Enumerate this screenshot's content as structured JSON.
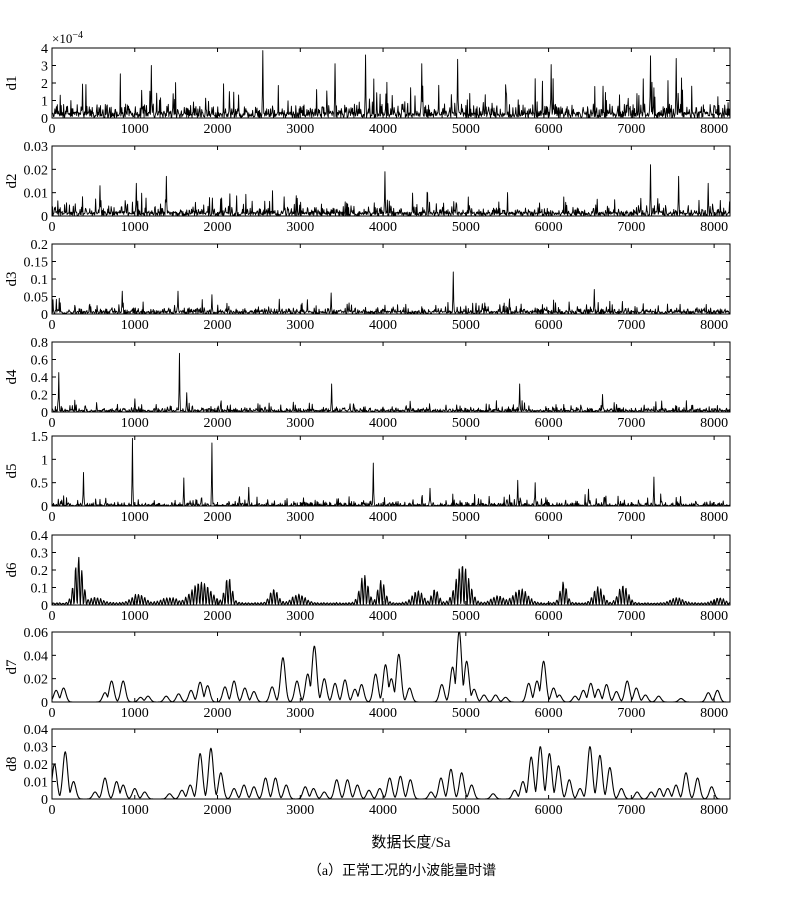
{
  "chart_data": {
    "type": "line",
    "xlabel": "数据长度/Sa",
    "caption": "（a）正常工况的小波能量时谱",
    "xlim": [
      0,
      8192
    ],
    "x_ticks": [
      0,
      1000,
      2000,
      3000,
      4000,
      5000,
      6000,
      7000,
      8000
    ],
    "x_tick_labels": [
      "0",
      "1000",
      "2000",
      "3000",
      "4000",
      "5000",
      "6000",
      "7000",
      "8000"
    ],
    "color": "#000000",
    "grid": false,
    "panels": [
      {
        "name": "d1",
        "ylabel": "d1",
        "exponent_label": "×10",
        "exponent_power": "−4",
        "ylim": [
          0,
          4
        ],
        "yticks": [
          "0",
          "1",
          "2",
          "3",
          "4"
        ],
        "style": "noise",
        "base": 0.35,
        "amp": 1.1,
        "peaks": [
          [
            2550,
            3.85
          ],
          [
            3790,
            3.6
          ],
          [
            4900,
            3.35
          ],
          [
            7230,
            3.55
          ],
          [
            7540,
            3.4
          ],
          [
            4470,
            3.1
          ],
          [
            1200,
            3.0
          ],
          [
            6030,
            3.05
          ],
          [
            3420,
            3.1
          ]
        ]
      },
      {
        "name": "d2",
        "ylabel": "d2",
        "ylim": [
          0,
          0.03
        ],
        "yticks": [
          "0",
          "0.01",
          "0.02",
          "0.03"
        ],
        "style": "noise",
        "base": 0.0018,
        "amp": 0.0045,
        "peaks": [
          [
            7230,
            0.022
          ],
          [
            4020,
            0.019
          ],
          [
            7570,
            0.017
          ],
          [
            1380,
            0.017
          ],
          [
            1020,
            0.014
          ],
          [
            7930,
            0.014
          ],
          [
            580,
            0.013
          ]
        ]
      },
      {
        "name": "d3",
        "ylabel": "d3",
        "ylim": [
          0,
          0.2
        ],
        "yticks": [
          "0",
          "0.05",
          "0.1",
          "0.15",
          "0.2"
        ],
        "style": "noise",
        "base": 0.008,
        "amp": 0.02,
        "peaks": [
          [
            4850,
            0.12
          ],
          [
            6550,
            0.07
          ],
          [
            850,
            0.065
          ],
          [
            1520,
            0.065
          ],
          [
            3370,
            0.06
          ],
          [
            1930,
            0.055
          ]
        ]
      },
      {
        "name": "d4",
        "ylabel": "d4",
        "ylim": [
          0,
          0.8
        ],
        "yticks": [
          "0",
          "0.2",
          "0.4",
          "0.6",
          "0.8"
        ],
        "style": "noise",
        "base": 0.02,
        "amp": 0.06,
        "peaks": [
          [
            1540,
            0.67
          ],
          [
            80,
            0.45
          ],
          [
            3380,
            0.32
          ],
          [
            5650,
            0.32
          ],
          [
            1630,
            0.22
          ],
          [
            6650,
            0.2
          ],
          [
            1000,
            0.15
          ]
        ]
      },
      {
        "name": "d5",
        "ylabel": "d5",
        "ylim": [
          0,
          1.5
        ],
        "yticks": [
          "0",
          "0.5",
          "1",
          "1.5"
        ],
        "style": "noise",
        "base": 0.02,
        "amp": 0.12,
        "peaks": [
          [
            970,
            1.45
          ],
          [
            1930,
            1.35
          ],
          [
            3880,
            0.92
          ],
          [
            380,
            0.72
          ],
          [
            1590,
            0.6
          ],
          [
            7270,
            0.62
          ],
          [
            5630,
            0.55
          ],
          [
            5840,
            0.5
          ],
          [
            2380,
            0.4
          ],
          [
            4570,
            0.38
          ],
          [
            6480,
            0.36
          ]
        ]
      },
      {
        "name": "d6",
        "ylabel": "d6",
        "ylim": [
          0,
          0.4
        ],
        "yticks": [
          "0",
          "0.1",
          "0.2",
          "0.3",
          "0.4"
        ],
        "style": "osc",
        "period": 38,
        "base": 0.003,
        "bumps": [
          [
            320,
            0.26,
            70
          ],
          [
            1800,
            0.12,
            160
          ],
          [
            2130,
            0.15,
            60
          ],
          [
            3770,
            0.16,
            70
          ],
          [
            3980,
            0.13,
            60
          ],
          [
            4960,
            0.22,
            110
          ],
          [
            6180,
            0.12,
            55
          ],
          [
            6600,
            0.09,
            80
          ],
          [
            6900,
            0.1,
            80
          ],
          [
            2680,
            0.08,
            70
          ],
          [
            2980,
            0.05,
            110
          ],
          [
            4420,
            0.07,
            90
          ],
          [
            4630,
            0.08,
            60
          ],
          [
            5660,
            0.08,
            120
          ],
          [
            5390,
            0.04,
            110
          ],
          [
            1040,
            0.05,
            110
          ],
          [
            520,
            0.03,
            120
          ],
          [
            8060,
            0.03,
            90
          ],
          [
            7550,
            0.03,
            100
          ],
          [
            1420,
            0.03,
            140
          ]
        ]
      },
      {
        "name": "d7",
        "ylabel": "d7",
        "ylim": [
          0,
          0.06
        ],
        "yticks": [
          "0",
          "0.02",
          "0.04",
          "0.06"
        ],
        "style": "peaks",
        "peaks": [
          [
            50,
            0.01
          ],
          [
            140,
            0.012
          ],
          [
            640,
            0.008
          ],
          [
            720,
            0.018
          ],
          [
            860,
            0.018
          ],
          [
            1070,
            0.004
          ],
          [
            1160,
            0.005
          ],
          [
            1380,
            0.005
          ],
          [
            1530,
            0.007
          ],
          [
            1680,
            0.01
          ],
          [
            1790,
            0.017
          ],
          [
            1880,
            0.014
          ],
          [
            2090,
            0.013
          ],
          [
            2200,
            0.018
          ],
          [
            2330,
            0.012
          ],
          [
            2440,
            0.009
          ],
          [
            2660,
            0.013
          ],
          [
            2790,
            0.038
          ],
          [
            2960,
            0.018
          ],
          [
            3090,
            0.024
          ],
          [
            3170,
            0.048
          ],
          [
            3290,
            0.02
          ],
          [
            3420,
            0.016
          ],
          [
            3540,
            0.019
          ],
          [
            3660,
            0.011
          ],
          [
            3740,
            0.015
          ],
          [
            3910,
            0.024
          ],
          [
            4030,
            0.032
          ],
          [
            4100,
            0.02
          ],
          [
            4190,
            0.041
          ],
          [
            4320,
            0.012
          ],
          [
            4710,
            0.015
          ],
          [
            4840,
            0.03
          ],
          [
            4920,
            0.061
          ],
          [
            5010,
            0.035
          ],
          [
            5100,
            0.011
          ],
          [
            5220,
            0.006
          ],
          [
            5360,
            0.006
          ],
          [
            5480,
            0.004
          ],
          [
            5760,
            0.016
          ],
          [
            5860,
            0.018
          ],
          [
            5940,
            0.035
          ],
          [
            6060,
            0.012
          ],
          [
            6130,
            0.006
          ],
          [
            6320,
            0.005
          ],
          [
            6420,
            0.01
          ],
          [
            6510,
            0.016
          ],
          [
            6600,
            0.011
          ],
          [
            6700,
            0.015
          ],
          [
            6820,
            0.009
          ],
          [
            6950,
            0.018
          ],
          [
            7060,
            0.012
          ],
          [
            7170,
            0.006
          ],
          [
            7330,
            0.005
          ],
          [
            7600,
            0.003
          ],
          [
            7930,
            0.008
          ],
          [
            8040,
            0.01
          ]
        ]
      },
      {
        "name": "d8",
        "ylabel": "d8",
        "ylim": [
          0,
          0.04
        ],
        "yticks": [
          "0",
          "0.01",
          "0.02",
          "0.03",
          "0.04"
        ],
        "style": "peaks",
        "peaks": [
          [
            30,
            0.02
          ],
          [
            160,
            0.027
          ],
          [
            260,
            0.01
          ],
          [
            520,
            0.004
          ],
          [
            640,
            0.012
          ],
          [
            780,
            0.01
          ],
          [
            860,
            0.008
          ],
          [
            1000,
            0.006
          ],
          [
            1120,
            0.004
          ],
          [
            1420,
            0.003
          ],
          [
            1570,
            0.005
          ],
          [
            1670,
            0.008
          ],
          [
            1790,
            0.026
          ],
          [
            1920,
            0.029
          ],
          [
            2040,
            0.015
          ],
          [
            2200,
            0.006
          ],
          [
            2320,
            0.008
          ],
          [
            2440,
            0.007
          ],
          [
            2580,
            0.012
          ],
          [
            2700,
            0.012
          ],
          [
            2830,
            0.008
          ],
          [
            3060,
            0.007
          ],
          [
            3160,
            0.006
          ],
          [
            3290,
            0.004
          ],
          [
            3440,
            0.011
          ],
          [
            3570,
            0.011
          ],
          [
            3690,
            0.008
          ],
          [
            3830,
            0.005
          ],
          [
            3960,
            0.006
          ],
          [
            4080,
            0.012
          ],
          [
            4210,
            0.013
          ],
          [
            4330,
            0.011
          ],
          [
            4580,
            0.004
          ],
          [
            4700,
            0.012
          ],
          [
            4820,
            0.017
          ],
          [
            4950,
            0.015
          ],
          [
            5070,
            0.008
          ],
          [
            5330,
            0.003
          ],
          [
            5590,
            0.005
          ],
          [
            5690,
            0.01
          ],
          [
            5790,
            0.024
          ],
          [
            5900,
            0.03
          ],
          [
            6010,
            0.026
          ],
          [
            6120,
            0.019
          ],
          [
            6250,
            0.011
          ],
          [
            6380,
            0.006
          ],
          [
            6500,
            0.03
          ],
          [
            6620,
            0.025
          ],
          [
            6740,
            0.018
          ],
          [
            6880,
            0.006
          ],
          [
            7070,
            0.004
          ],
          [
            7240,
            0.004
          ],
          [
            7340,
            0.006
          ],
          [
            7440,
            0.006
          ],
          [
            7540,
            0.008
          ],
          [
            7660,
            0.015
          ],
          [
            7800,
            0.012
          ],
          [
            7970,
            0.007
          ]
        ]
      }
    ]
  }
}
